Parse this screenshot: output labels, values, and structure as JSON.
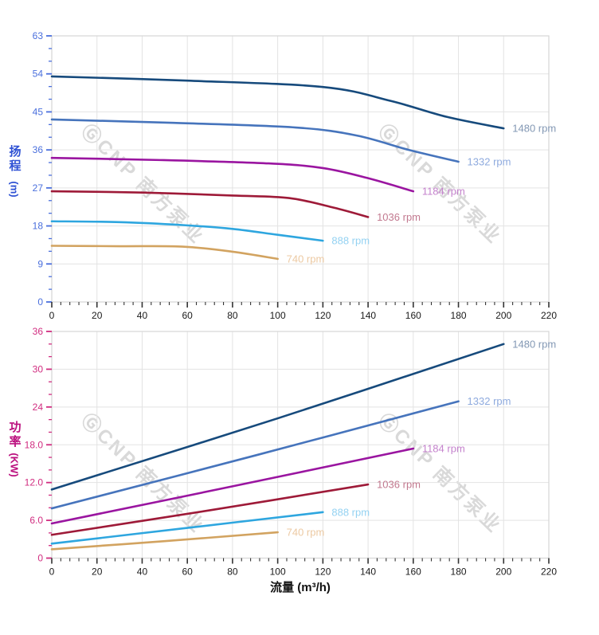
{
  "watermark": {
    "text": "ⒼCNP 南方泵业"
  },
  "colors": {
    "grid": "#e3e3e3",
    "plot_border": "#d6d6d6",
    "x_tick": "#333333",
    "x_tick_label": "#1a1a1a"
  },
  "chart_data": [
    {
      "type": "line",
      "name": "head-vs-flow",
      "ylabel_cjk": "扬程",
      "ylabel_unit": "(m)",
      "ylabel_color": "#2f52d4",
      "axis_color": "#4a6fdd",
      "xlim": [
        0,
        220
      ],
      "ylim": [
        0,
        63
      ],
      "x_major": 20,
      "x_minor": 4,
      "y_major": 9,
      "y_minor": 3,
      "grid": true,
      "legend_position": "line-end",
      "x_tick_labels": [
        "0",
        "20",
        "40",
        "60",
        "80",
        "100",
        "120",
        "140",
        "160",
        "180",
        "200",
        "220"
      ],
      "y_tick_labels": [
        "0",
        "9",
        "18",
        "27",
        "36",
        "45",
        "54",
        "63"
      ],
      "series": [
        {
          "name": "1480 rpm",
          "color": "#164a7c",
          "label_color": "#8398b4",
          "points": [
            [
              0,
              53.4
            ],
            [
              60,
              52.4
            ],
            [
              120,
              50.9
            ],
            [
              150,
              47.6
            ],
            [
              175,
              43.8
            ],
            [
              200,
              41.1
            ]
          ]
        },
        {
          "name": "1332 rpm",
          "color": "#4674bc",
          "label_color": "#8eaade",
          "points": [
            [
              0,
              43.2
            ],
            [
              54,
              42.4
            ],
            [
              108,
              41.3
            ],
            [
              135,
              39.4
            ],
            [
              158,
              36.0
            ],
            [
              180,
              33.2
            ]
          ]
        },
        {
          "name": "1184 rpm",
          "color": "#9a15a0",
          "label_color": "#c583cd",
          "points": [
            [
              0,
              34.1
            ],
            [
              48,
              33.6
            ],
            [
              96,
              32.8
            ],
            [
              120,
              31.7
            ],
            [
              140,
              29.3
            ],
            [
              160,
              26.2
            ]
          ]
        },
        {
          "name": "1036 rpm",
          "color": "#9e1a38",
          "label_color": "#c2798f",
          "points": [
            [
              0,
              26.2
            ],
            [
              40,
              25.9
            ],
            [
              80,
              25.2
            ],
            [
              105,
              24.6
            ],
            [
              125,
              22.3
            ],
            [
              140,
              20.1
            ]
          ]
        },
        {
          "name": "888 rpm",
          "color": "#2ea6df",
          "label_color": "#94d2f2",
          "points": [
            [
              0,
              19.1
            ],
            [
              30,
              18.9
            ],
            [
              58,
              18.2
            ],
            [
              80,
              17.3
            ],
            [
              100,
              15.9
            ],
            [
              120,
              14.5
            ]
          ]
        },
        {
          "name": "740 rpm",
          "color": "#d2a360",
          "label_color": "#ecc9a2",
          "points": [
            [
              0,
              13.3
            ],
            [
              30,
              13.2
            ],
            [
              58,
              13.1
            ],
            [
              80,
              11.9
            ],
            [
              100,
              10.2
            ]
          ]
        }
      ]
    },
    {
      "type": "line",
      "name": "power-vs-flow",
      "xlabel": "流量 (m³/h)",
      "ylabel_cjk": "功率",
      "ylabel_unit": "(KW)",
      "ylabel_color": "#bb0f7e",
      "axis_color": "#d12d80",
      "xlim": [
        0,
        220
      ],
      "ylim": [
        0,
        36
      ],
      "x_major": 20,
      "x_minor": 4,
      "y_major": 6,
      "y_minor": 2,
      "grid": true,
      "legend_position": "line-end",
      "x_tick_labels": [
        "0",
        "20",
        "40",
        "60",
        "80",
        "100",
        "120",
        "140",
        "160",
        "180",
        "200",
        "220"
      ],
      "y_tick_labels": [
        "0",
        "6.0",
        "12.0",
        "18.0",
        "24",
        "30",
        "36"
      ],
      "series": [
        {
          "name": "1480 rpm",
          "color": "#164a7c",
          "label_color": "#8398b4",
          "points": [
            [
              0,
              10.9
            ],
            [
              100,
              22.2
            ],
            [
              200,
              34.0
            ]
          ]
        },
        {
          "name": "1332 rpm",
          "color": "#4674bc",
          "label_color": "#8eaade",
          "points": [
            [
              0,
              7.9
            ],
            [
              90,
              16.3
            ],
            [
              180,
              24.9
            ]
          ]
        },
        {
          "name": "1184 rpm",
          "color": "#9a15a0",
          "label_color": "#c583cd",
          "points": [
            [
              0,
              5.5
            ],
            [
              80,
              11.4
            ],
            [
              160,
              17.4
            ]
          ]
        },
        {
          "name": "1036 rpm",
          "color": "#9e1a38",
          "label_color": "#c2798f",
          "points": [
            [
              0,
              3.7
            ],
            [
              70,
              7.6
            ],
            [
              140,
              11.7
            ]
          ]
        },
        {
          "name": "888 rpm",
          "color": "#2ea6df",
          "label_color": "#94d2f2",
          "points": [
            [
              0,
              2.3
            ],
            [
              60,
              4.8
            ],
            [
              120,
              7.3
            ]
          ]
        },
        {
          "name": "740 rpm",
          "color": "#d2a360",
          "label_color": "#ecc9a2",
          "points": [
            [
              0,
              1.4
            ],
            [
              50,
              2.7
            ],
            [
              100,
              4.1
            ]
          ]
        }
      ]
    }
  ]
}
